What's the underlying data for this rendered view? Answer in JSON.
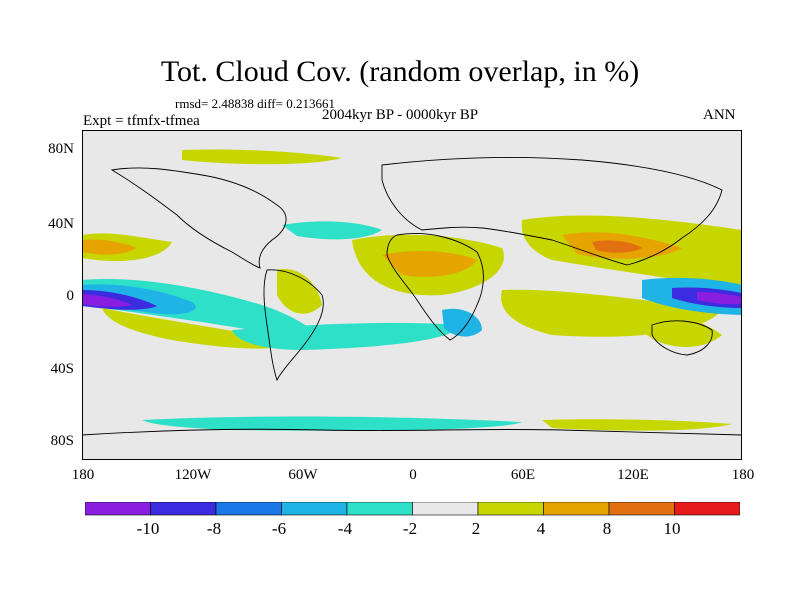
{
  "title": "Tot. Cloud Cov. (random overlap, in %)",
  "stats": "rmsd= 2.48838 diff= 0.213661",
  "period": "2004kyr BP - 0000kyr BP",
  "experiment": "Expt = tfmfx-tfmea",
  "season": "ANN",
  "map": {
    "projection": "cylindrical equidistant",
    "lon_range": [
      -180,
      180
    ],
    "lat_range": [
      -90,
      90
    ],
    "background_color": "#e8e8e8",
    "y_ticks": [
      "80N",
      "40N",
      "0",
      "40S",
      "80S"
    ],
    "x_ticks": [
      "180",
      "120W",
      "60W",
      "0",
      "60E",
      "120E",
      "180"
    ]
  },
  "colorbar": {
    "colors": [
      "#8a1ee0",
      "#3c2ce0",
      "#1a78e8",
      "#20b4e6",
      "#2ee0c8",
      "#e8e8e8",
      "#c8d600",
      "#e6a400",
      "#e07010",
      "#e61a1a"
    ],
    "labels": [
      "-10",
      "-8",
      "-6",
      "-4",
      "-2",
      "2",
      "4",
      "8",
      "10"
    ]
  }
}
